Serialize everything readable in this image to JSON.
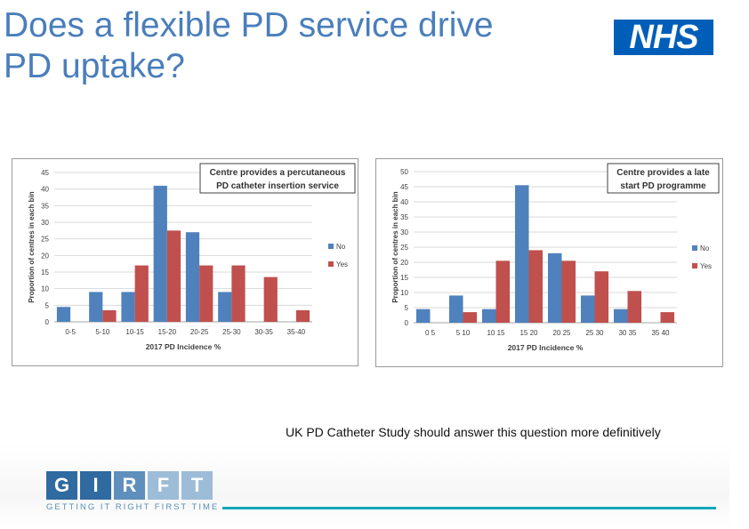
{
  "title_lines": [
    "Does a flexible PD service drive",
    "PD uptake?"
  ],
  "nhs_logo": "NHS",
  "note": "UK PD Catheter Study should answer this question more definitively",
  "footer": {
    "letters": [
      "G",
      "I",
      "R",
      "F",
      "T"
    ],
    "letter_colors": [
      "#2f6aa0",
      "#2f6aa0",
      "#5f8fbc",
      "#9dbcd8",
      "#9dbcd8"
    ],
    "tagline": "GETTING IT RIGHT FIRST TIME",
    "line_color": "#14a7b9"
  },
  "colors": {
    "No": "#4f81bd",
    "Yes": "#c0504d",
    "title_color": "#4a7ebb",
    "nhs_blue": "#005eb8"
  },
  "chart_data": [
    {
      "type": "bar",
      "title": "Centre provides a percutaneous PD catheter insertion service",
      "title_lines": [
        "Centre provides a percutaneous",
        "PD catheter insertion service"
      ],
      "xlabel": "2017 PD Incidence %",
      "ylabel": "Proportion of centres in each bin",
      "ylim": [
        0,
        45
      ],
      "yticks": [
        0,
        5,
        10,
        15,
        20,
        25,
        30,
        35,
        40,
        45
      ],
      "categories": [
        "0-5",
        "5-10",
        "10-15",
        "15-20",
        "20-25",
        "25-30",
        "30-35",
        "35-40"
      ],
      "series": [
        {
          "name": "No",
          "values": [
            4.5,
            9,
            9,
            41,
            27,
            9,
            0,
            0
          ]
        },
        {
          "name": "Yes",
          "values": [
            0,
            3.5,
            17,
            27.5,
            17,
            17,
            13.5,
            3.5
          ]
        }
      ],
      "legend": "right",
      "grid": true
    },
    {
      "type": "bar",
      "title": "Centre provides a late start PD programme",
      "title_lines": [
        "Centre provides a late",
        "start PD programme"
      ],
      "xlabel": "2017 PD Incidence %",
      "ylabel": "Proportion of centres in each bin",
      "ylim": [
        0,
        50
      ],
      "yticks": [
        0,
        5,
        10,
        15,
        20,
        25,
        30,
        35,
        40,
        45,
        50
      ],
      "categories": [
        "0 5",
        "5 10",
        "10 15",
        "15 20",
        "20 25",
        "25 30",
        "30 35",
        "35 40"
      ],
      "series": [
        {
          "name": "No",
          "values": [
            4.5,
            9,
            4.5,
            45.5,
            23,
            9,
            4.5,
            0
          ]
        },
        {
          "name": "Yes",
          "values": [
            0,
            3.5,
            20.5,
            24,
            20.5,
            17,
            10.5,
            3.5
          ]
        }
      ],
      "legend": "right",
      "grid": true
    }
  ]
}
